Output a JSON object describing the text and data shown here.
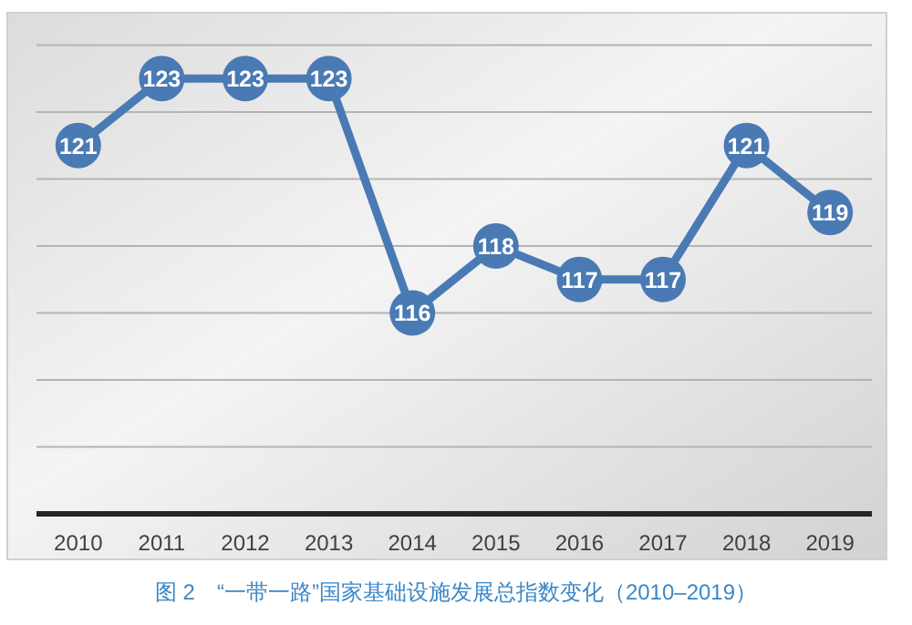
{
  "chart_data": {
    "type": "line",
    "title": "图 2　“一带一路”国家基础设施发展总指数变化（2010–2019）",
    "categories": [
      "2010",
      "2011",
      "2012",
      "2013",
      "2014",
      "2015",
      "2016",
      "2017",
      "2018",
      "2019"
    ],
    "series": [
      {
        "color": "#4a7ab4",
        "values": [
          121,
          123,
          123,
          123,
          116,
          118,
          117,
          117,
          121,
          119
        ]
      }
    ],
    "ylim": [
      110,
      124
    ],
    "yticks": [
      {
        "value": 110,
        "label": null
      },
      {
        "value": 112,
        "label": null
      },
      {
        "value": 114,
        "label": null
      },
      {
        "value": 116,
        "label": null
      },
      {
        "value": 118,
        "label": null
      },
      {
        "value": 120,
        "label": null
      },
      {
        "value": 122,
        "label": null
      },
      {
        "value": 124,
        "label": null
      }
    ],
    "tick_labels": "x",
    "grid": "y",
    "marker": "circle",
    "line_style": "solid",
    "data_labels": true
  }
}
